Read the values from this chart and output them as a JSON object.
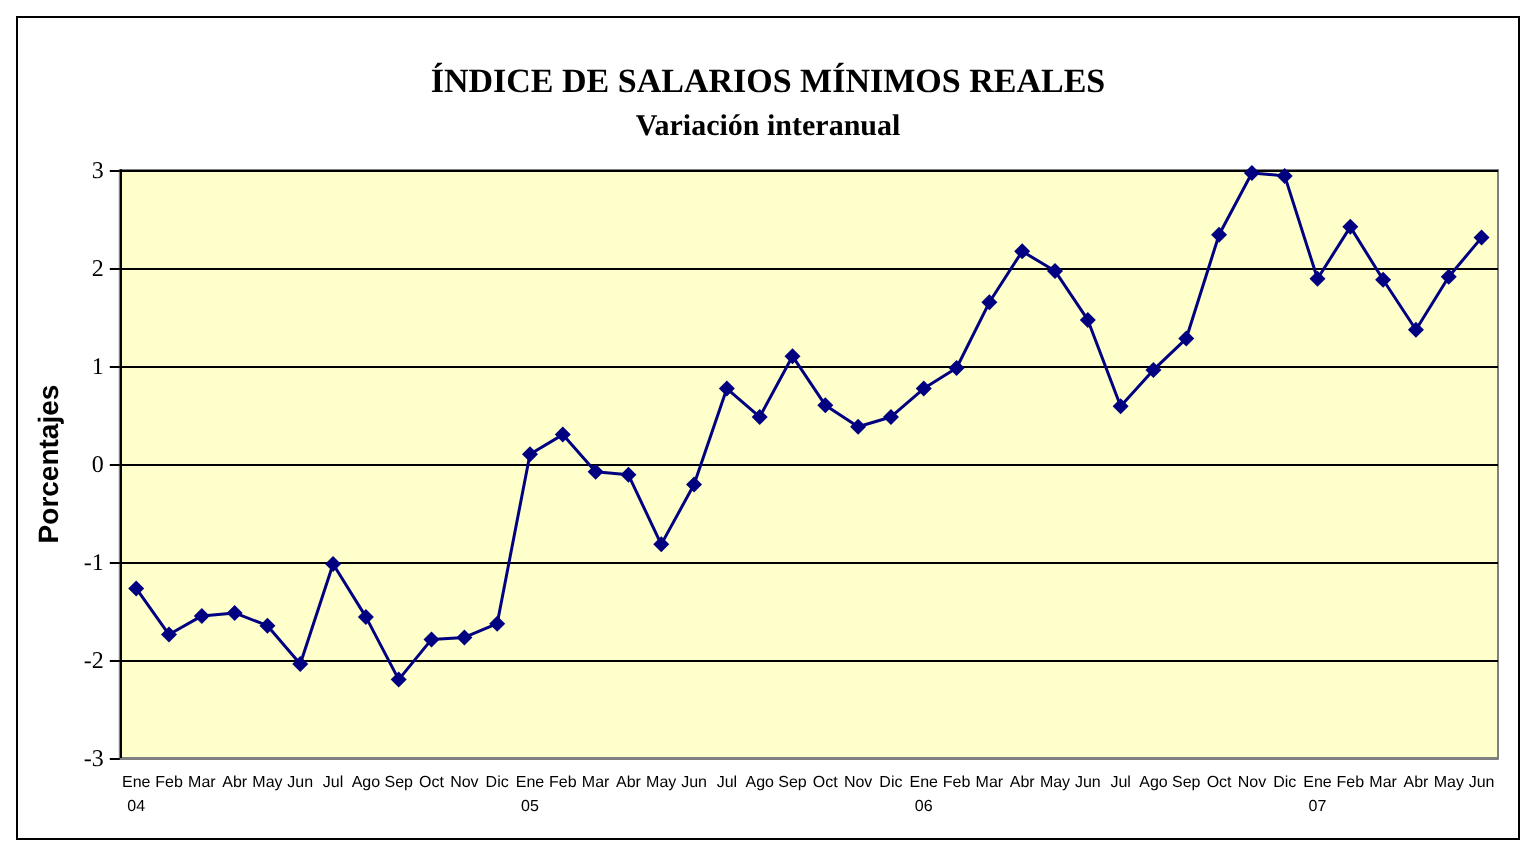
{
  "chart_data": {
    "type": "line",
    "title": "ÍNDICE DE SALARIOS MÍNIMOS REALES",
    "subtitle": "Variación interanual",
    "ylabel": "Porcentajes",
    "categories": [
      "Ene\n04",
      "Feb",
      "Mar",
      "Abr",
      "May",
      "Jun",
      "Jul",
      "Ago",
      "Sep",
      "Oct",
      "Nov",
      "Dic",
      "Ene\n05",
      "Feb",
      "Mar",
      "Abr",
      "May",
      "Jun",
      "Jul",
      "Ago",
      "Sep",
      "Oct",
      "Nov",
      "Dic",
      "Ene\n06",
      "Feb",
      "Mar",
      "Abr",
      "May",
      "Jun",
      "Jul",
      "Ago",
      "Sep",
      "Oct",
      "Nov",
      "Dic",
      "Ene\n07",
      "Feb",
      "Mar",
      "Abr",
      "May",
      "Jun"
    ],
    "series": [
      {
        "color": "#000080",
        "values": [
          -1.27,
          -1.74,
          -1.55,
          -1.52,
          -1.65,
          -2.04,
          -1.02,
          -1.56,
          -2.2,
          -1.79,
          -1.77,
          -1.63,
          0.1,
          0.3,
          -0.08,
          -0.11,
          -0.82,
          -0.21,
          0.77,
          0.48,
          1.1,
          0.6,
          0.38,
          0.48,
          0.77,
          0.98,
          1.65,
          2.17,
          1.97,
          1.47,
          0.59,
          0.96,
          1.28,
          2.34,
          2.97,
          2.94,
          1.89,
          2.42,
          1.88,
          1.37,
          1.91,
          2.31
        ]
      }
    ],
    "ylim": [
      -3,
      3
    ],
    "yticks": [
      -3,
      -2,
      -1,
      0,
      1,
      2,
      3
    ],
    "grid": "y",
    "marker": "diamond",
    "line_style": "solid"
  }
}
